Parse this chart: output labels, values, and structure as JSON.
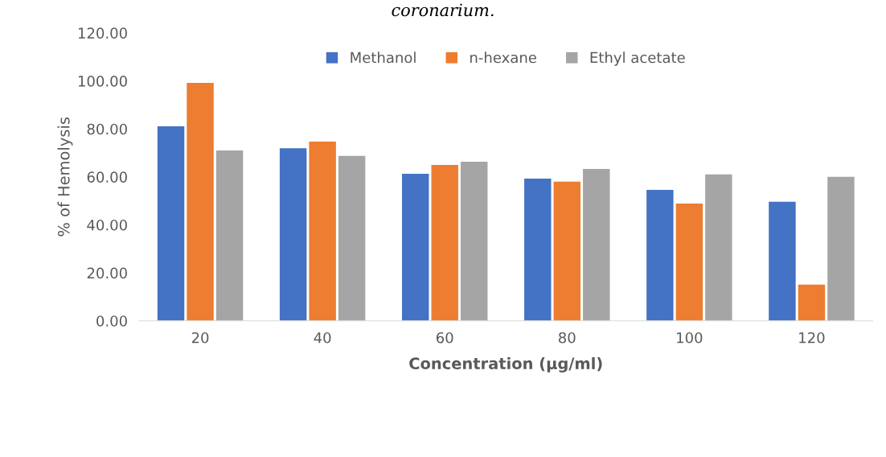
{
  "chart_data": {
    "type": "bar",
    "annotations": [
      "coronarium."
    ],
    "xlabel": "Concentration (µg/ml)",
    "ylabel": "% of Hemolysis",
    "categories": [
      "20",
      "40",
      "60",
      "80",
      "100",
      "120"
    ],
    "series": [
      {
        "name": "Methanol",
        "color": "#4472c4",
        "values": [
          81.1,
          71.9,
          61.3,
          59.3,
          54.6,
          49.6
        ]
      },
      {
        "name": "n-hexane",
        "color": "#ed7d31",
        "values": [
          99.2,
          74.7,
          65.0,
          58.0,
          48.9,
          15.1
        ]
      },
      {
        "name": "Ethyl acetate",
        "color": "#a5a5a5",
        "values": [
          71.0,
          68.7,
          66.3,
          63.3,
          61.0,
          60.0
        ]
      }
    ],
    "ylim": [
      0,
      120
    ],
    "yticks": [
      {
        "value": 0,
        "label": "0.00"
      },
      {
        "value": 20,
        "label": "20.00"
      },
      {
        "value": 40,
        "label": "40.00"
      },
      {
        "value": 60,
        "label": "60.00"
      },
      {
        "value": 80,
        "label": "80.00"
      },
      {
        "value": 100,
        "label": "100.00"
      },
      {
        "value": 120,
        "label": "120.00"
      }
    ],
    "grid": false,
    "legend": "top"
  }
}
